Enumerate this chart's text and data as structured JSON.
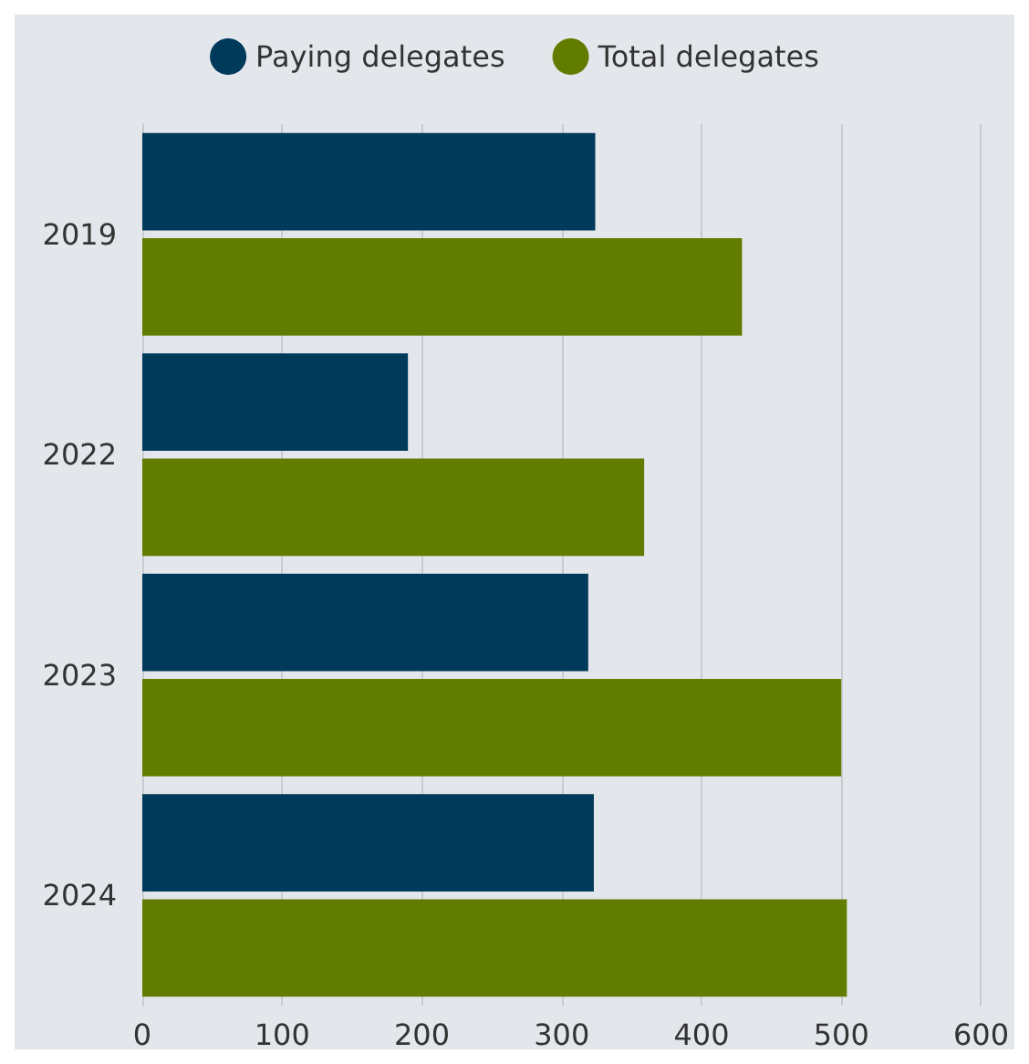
{
  "chart_data": {
    "type": "bar",
    "orientation": "horizontal",
    "categories": [
      "2019",
      "2022",
      "2023",
      "2024"
    ],
    "series": [
      {
        "name": "Paying delegates",
        "color": "#003a5a",
        "values": [
          324,
          190,
          319,
          323
        ]
      },
      {
        "name": "Total delegates",
        "color": "#627c00",
        "values": [
          429,
          359,
          500,
          504
        ]
      }
    ],
    "xlim": [
      0,
      600
    ],
    "xticks": [
      0,
      100,
      200,
      300,
      400,
      500,
      600
    ],
    "grid": "x",
    "legend": "top"
  }
}
